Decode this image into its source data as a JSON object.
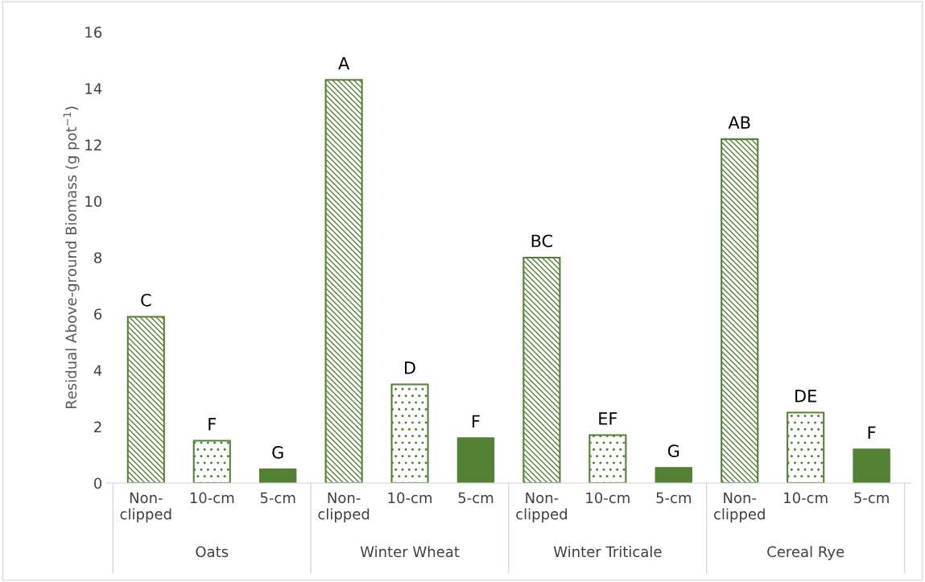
{
  "chart_data": {
    "type": "bar",
    "ylabel": "Residual Above-ground Biomass (g pot$^{−1}$)",
    "categories": [
      "Non-\nclipped",
      "10-cm",
      "5-cm",
      "Non-\nclipped",
      "10-cm",
      "5-cm",
      "Non-\nclipped",
      "10-cm",
      "5-cm",
      "Non-\nclipped",
      "10-cm",
      "5-cm"
    ],
    "values": [
      5.9,
      1.5,
      0.5,
      14.3,
      3.5,
      1.6,
      8.0,
      1.7,
      0.55,
      12.2,
      2.5,
      1.2
    ],
    "value_labels": [
      "C",
      "F",
      "G",
      "A",
      "D",
      "F",
      "BC",
      "EF",
      "G",
      "AB",
      "DE",
      "F"
    ],
    "color": "#548235",
    "ylim": [
      0,
      16
    ],
    "yticks": [
      0,
      2,
      4,
      6,
      8,
      10,
      12,
      14,
      16
    ],
    "grid": false,
    "annotations": [
      "Oats",
      "Winter Wheat",
      "Winter Triticale",
      "Cereal Rye"
    ]
  }
}
